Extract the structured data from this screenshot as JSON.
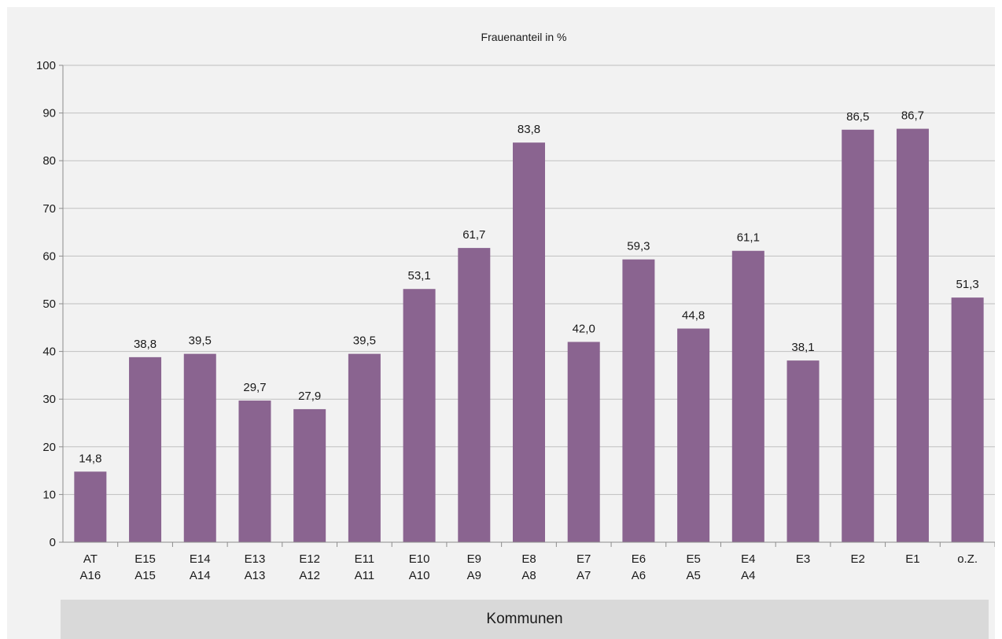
{
  "chart_data": {
    "type": "bar",
    "title": "Frauenanteil in %",
    "xlabel": "Kommunen",
    "ylabel": "",
    "ylim": [
      0,
      100
    ],
    "yticks": [
      0,
      10,
      20,
      30,
      40,
      50,
      60,
      70,
      80,
      90,
      100
    ],
    "grid": true,
    "categories": [
      [
        "AT",
        "A16"
      ],
      [
        "E15",
        "A15"
      ],
      [
        "E14",
        "A14"
      ],
      [
        "E13",
        "A13"
      ],
      [
        "E12",
        "A12"
      ],
      [
        "E11",
        "A11"
      ],
      [
        "E10",
        "A10"
      ],
      [
        "E9",
        "A9"
      ],
      [
        "E8",
        "A8"
      ],
      [
        "E7",
        "A7"
      ],
      [
        "E6",
        "A6"
      ],
      [
        "E5",
        "A5"
      ],
      [
        "E4",
        "A4"
      ],
      [
        "E3"
      ],
      [
        "E2"
      ],
      [
        "E1"
      ],
      [
        "o.Z."
      ]
    ],
    "values": [
      14.8,
      38.8,
      39.5,
      29.7,
      27.9,
      39.5,
      53.1,
      61.7,
      83.8,
      42.0,
      59.3,
      44.8,
      61.1,
      38.1,
      86.5,
      86.7,
      51.3
    ],
    "value_labels": [
      "14,8",
      "38,8",
      "39,5",
      "29,7",
      "27,9",
      "39,5",
      "53,1",
      "61,7",
      "83,8",
      "42,0",
      "59,3",
      "44,8",
      "61,1",
      "38,1",
      "86,5",
      "86,7",
      "51,3"
    ],
    "bar_color": "#8a6490",
    "grid_color": "#bfbfbf",
    "axis_color": "#8c8c8c",
    "panel_color": "#f2f2f2",
    "band_color": "#d9d9d9"
  }
}
